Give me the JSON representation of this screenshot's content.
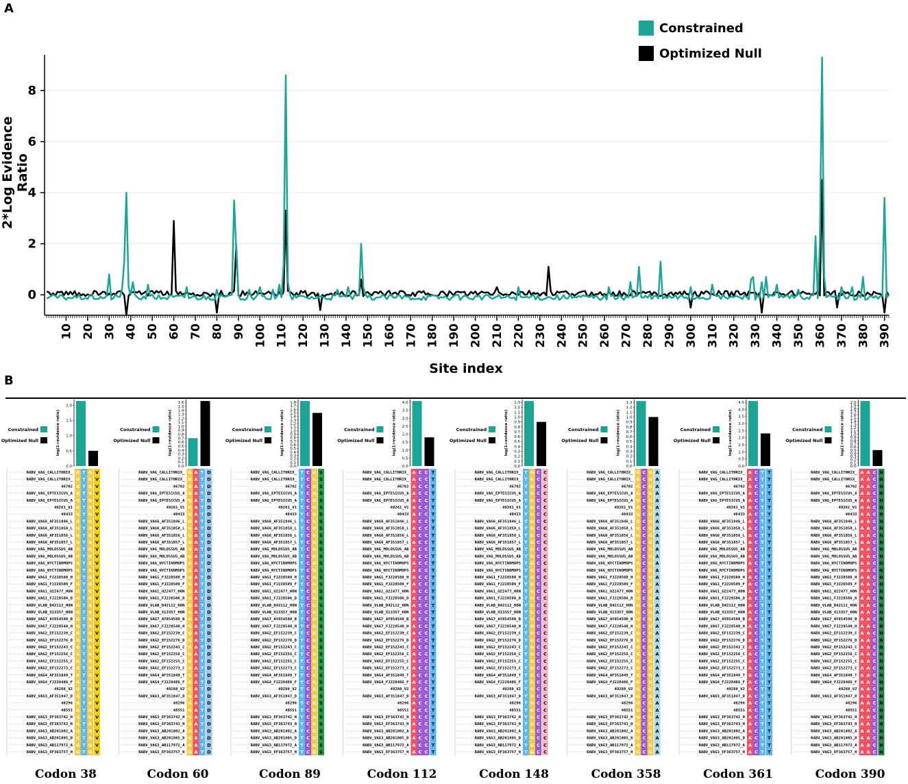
{
  "panel_a_label": "A",
  "panel_b_label": "B",
  "legend": {
    "constrained": {
      "label": "Constrained",
      "color": "#1aa597"
    },
    "null": {
      "label": "Optimized Null",
      "color": "#000000"
    }
  },
  "chart_data": {
    "type": "line",
    "title": "",
    "xlabel": "Site index",
    "ylabel": "2*Log Evidence Ratio",
    "xlim": [
      0,
      392
    ],
    "ylim": [
      -0.8,
      9.4
    ],
    "yticks": [
      0,
      2,
      4,
      6,
      8
    ],
    "xticks": [
      10,
      20,
      30,
      40,
      50,
      60,
      70,
      80,
      90,
      100,
      110,
      120,
      130,
      140,
      150,
      160,
      170,
      180,
      190,
      200,
      210,
      220,
      230,
      240,
      250,
      260,
      270,
      280,
      290,
      300,
      310,
      320,
      330,
      340,
      350,
      360,
      370,
      380,
      390
    ],
    "grid": "horizontal",
    "legend_position": "top-right",
    "series": [
      {
        "name": "Constrained",
        "color": "#1aa597",
        "peaks": [
          [
            30,
            0.8
          ],
          [
            36,
            0.2
          ],
          [
            37,
            1.3
          ],
          [
            38,
            4.0
          ],
          [
            39,
            0.3
          ],
          [
            41,
            0.5
          ],
          [
            48,
            0.4
          ],
          [
            66,
            0.3
          ],
          [
            80,
            0.2
          ],
          [
            88,
            3.7
          ],
          [
            89,
            1.8
          ],
          [
            95,
            0.2
          ],
          [
            100,
            0.3
          ],
          [
            106,
            0.2
          ],
          [
            109,
            0.4
          ],
          [
            111,
            1.2
          ],
          [
            112,
            8.6
          ],
          [
            113,
            0.5
          ],
          [
            136,
            0.2
          ],
          [
            141,
            0.3
          ],
          [
            147,
            2.0
          ],
          [
            148,
            0.3
          ],
          [
            220,
            0.3
          ],
          [
            262,
            0.3
          ],
          [
            272,
            0.5
          ],
          [
            276,
            1.1
          ],
          [
            286,
            1.3
          ],
          [
            300,
            0.3
          ],
          [
            310,
            0.4
          ],
          [
            328,
            0.6
          ],
          [
            329,
            0.7
          ],
          [
            333,
            0.5
          ],
          [
            335,
            0.7
          ],
          [
            340,
            0.4
          ],
          [
            350,
            0.2
          ],
          [
            358,
            2.3
          ],
          [
            360,
            2.0
          ],
          [
            361,
            9.3
          ],
          [
            362,
            0.7
          ],
          [
            370,
            0.3
          ],
          [
            375,
            0.3
          ],
          [
            380,
            0.7
          ],
          [
            390,
            3.8
          ]
        ],
        "baseline": -0.1
      },
      {
        "name": "Optimized Null",
        "color": "#000000",
        "peaks": [
          [
            38,
            -0.8
          ],
          [
            60,
            2.9
          ],
          [
            80,
            -0.7
          ],
          [
            89,
            1.9
          ],
          [
            112,
            3.3
          ],
          [
            128,
            -0.6
          ],
          [
            147,
            0.6
          ],
          [
            210,
            0.3
          ],
          [
            234,
            1.1
          ],
          [
            300,
            -0.5
          ],
          [
            333,
            -0.7
          ],
          [
            361,
            4.5
          ],
          [
            368,
            -0.5
          ],
          [
            390,
            -0.7
          ]
        ],
        "baseline": 0.05
      }
    ]
  },
  "panel_b": {
    "axis_label": "log(1+evidence ratio)",
    "legend_constrained": "Constrained",
    "legend_null": "Optimized Null",
    "codons": [
      {
        "label": "Codon 38",
        "constrained": 2.2,
        "null": 0.5,
        "ymax": 2.1,
        "nuc": [
          "G",
          "T",
          "G"
        ],
        "aa": "V"
      },
      {
        "label": "Codon 60",
        "constrained": 0.7,
        "null": 1.7,
        "ymax": 1.6,
        "nuc": [
          "G",
          "A",
          "T"
        ],
        "aa": "D"
      },
      {
        "label": "Codon 89",
        "constrained": 1.9,
        "null": 1.5,
        "ymax": 1.8,
        "nuc": [
          "T",
          "C",
          "G"
        ],
        "aa": "S"
      },
      {
        "label": "Codon 112",
        "constrained": 4.3,
        "null": 1.8,
        "ymax": 4.0,
        "nuc": [
          "A",
          "C",
          "C"
        ],
        "aa": "T"
      },
      {
        "label": "Codon 148",
        "constrained": 1.4,
        "null": 0.9,
        "ymax": 1.3,
        "nuc": [
          "T",
          "G",
          "C"
        ],
        "aa": "C"
      },
      {
        "label": "Codon 358",
        "constrained": 1.4,
        "null": 1.0,
        "ymax": 1.3,
        "nuc": [
          "G",
          "C",
          "G"
        ],
        "aa": "A"
      },
      {
        "label": "Codon 361",
        "constrained": 4.8,
        "null": 2.3,
        "ymax": 4.5,
        "nuc": [
          "A",
          "C",
          "T"
        ],
        "aa": "T"
      },
      {
        "label": "Codon 390",
        "constrained": 2.1,
        "null": 0.5,
        "ymax": 2.0,
        "nuc": [
          "A",
          "A",
          "C"
        ],
        "aa": "N"
      }
    ],
    "sequence_names": [
      "RABV_VAG_CALLITHRIX_",
      "RABV_VAG_CALLITHRIX_",
      "46702",
      "RABV_VAG_EPTESICUS_A",
      "RABV_VAG_EPTESICUS_A",
      "49261_V1",
      "48433",
      "RABV_VAG6_AF351846_L",
      "RABV_VAG6_AF351858_L",
      "RABV_VAG6_AF351856_L",
      "RABV_VAG6_AF351857_L",
      "RABV_VAG_MOLOSSUS_AB",
      "RABV_VAG_MOLOSSUS_AB",
      "RABV_VAG_NYCTINOMOPS",
      "RABV_VAG_NYCTINOMOPS",
      "RABV_VAG1_FJ228508_H",
      "RABV_VAG1_FJ228509_F",
      "RABV_VAG1_U22477_HON",
      "RABV_VAG1_FJ228506_D",
      "RABV_VLAB_D42112_HON",
      "RABV_VLAB_X13357_HON",
      "RABV_VAG7_AY854590_B",
      "RABV_VAG7_FJ228540_H",
      "RABV_VAG2_EF152239_C",
      "RABV_VAG2_EF152276_D",
      "RABV_VAG2_EF152243_C",
      "RABV_VAG2_EF152256_C",
      "RABV_VAG2_EF152255_C",
      "RABV_VAG2_EF152273_C",
      "RABV_VAG4_AF351849_T",
      "RABV_VAG4_FJ228486_F",
      "49288_V2",
      "RABV_VAG3_AF351847_D",
      "48296",
      "48551",
      "RABV_VAG3_EF363742_H",
      "RABV_VAG3_EF363743_H",
      "RABV_VAG3_AB201802_A",
      "RABV_VAG3_AB201805_D",
      "RABV_VAG3_AB117972_A",
      "RABV_VAG3_EF363757_H"
    ]
  }
}
